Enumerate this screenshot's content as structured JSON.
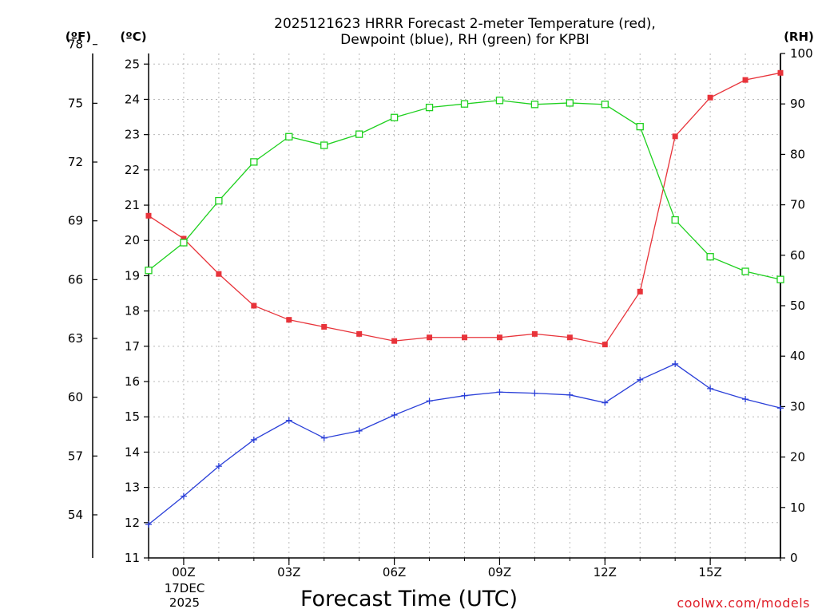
{
  "chart_data": {
    "type": "line",
    "title_line1": "2025121623 HRRR Forecast 2-meter Temperature (red),",
    "title_line2": "Dewpoint (blue), RH (green) for KPBI",
    "xlabel": "Forecast Time (UTC)",
    "credit": "coolwx.com/models",
    "left_unit_f": "(ºF)",
    "left_unit_c": "(ºC)",
    "right_unit": "(RH)",
    "x_tick_labels": [
      "00Z",
      "03Z",
      "06Z",
      "09Z",
      "12Z",
      "15Z"
    ],
    "x_date_line1": "17DEC",
    "x_date_line2": "2025",
    "c_ticks": [
      "11",
      "12",
      "13",
      "14",
      "15",
      "16",
      "17",
      "18",
      "19",
      "20",
      "21",
      "22",
      "23",
      "24",
      "25"
    ],
    "f_ticks": [
      "54",
      "57",
      "60",
      "63",
      "66",
      "69",
      "72",
      "75",
      "78"
    ],
    "rh_ticks": [
      "0",
      "10",
      "20",
      "30",
      "40",
      "50",
      "60",
      "70",
      "80",
      "90",
      "100"
    ],
    "c_range": [
      11,
      25.3
    ],
    "rh_range": [
      0,
      100
    ],
    "grid": true,
    "x": [
      "2025-12-16 23Z",
      "2025-12-17 00Z",
      "2025-12-17 01Z",
      "2025-12-17 02Z",
      "2025-12-17 03Z",
      "2025-12-17 04Z",
      "2025-12-17 05Z",
      "2025-12-17 06Z",
      "2025-12-17 07Z",
      "2025-12-17 08Z",
      "2025-12-17 09Z",
      "2025-12-17 10Z",
      "2025-12-17 11Z",
      "2025-12-17 12Z",
      "2025-12-17 13Z",
      "2025-12-17 14Z",
      "2025-12-17 15Z",
      "2025-12-17 16Z",
      "2025-12-17 17Z"
    ],
    "series": [
      {
        "name": "Temperature",
        "axis": "celsius",
        "color": "#e8333a",
        "marker": "square-filled",
        "values": [
          20.7,
          20.05,
          19.05,
          18.15,
          17.75,
          17.55,
          17.35,
          17.15,
          17.25,
          17.25,
          17.25,
          17.35,
          17.25,
          17.05,
          18.55,
          22.95,
          24.05,
          24.55,
          24.75
        ]
      },
      {
        "name": "Dewpoint",
        "axis": "celsius",
        "color": "#2a3fd8",
        "marker": "plus",
        "values": [
          11.95,
          12.75,
          13.6,
          14.35,
          14.9,
          14.4,
          14.6,
          15.05,
          15.45,
          15.6,
          15.7,
          15.67,
          15.62,
          15.4,
          16.05,
          16.5,
          15.8,
          15.5,
          15.25
        ]
      },
      {
        "name": "RH",
        "axis": "rh",
        "color": "#1ed01e",
        "marker": "square-open",
        "values": [
          57,
          62.5,
          70.8,
          78.5,
          83.5,
          81.8,
          84,
          87.3,
          89.3,
          90,
          90.7,
          89.9,
          90.2,
          89.9,
          85.5,
          67,
          59.7,
          56.8,
          55.2
        ]
      }
    ]
  }
}
